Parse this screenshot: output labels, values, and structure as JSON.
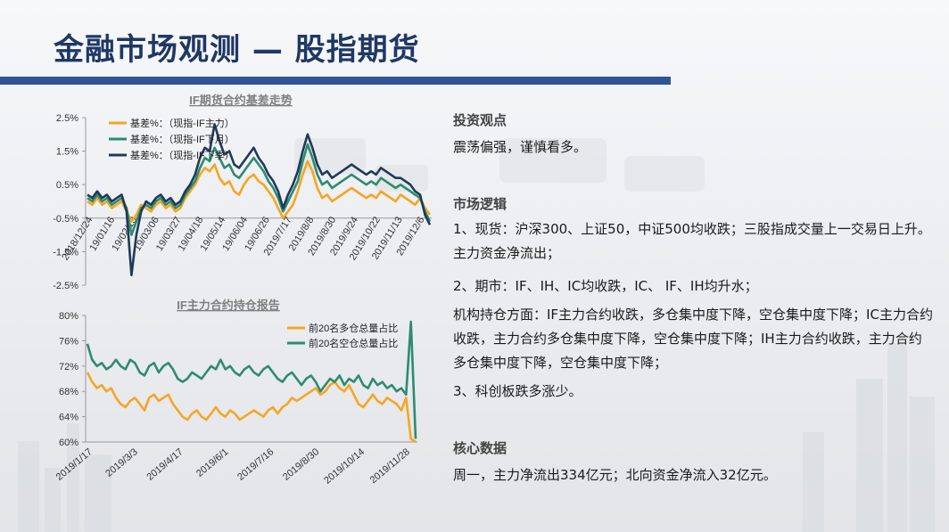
{
  "page": {
    "title": "金融市场观测 — 股指期货"
  },
  "text_panel": {
    "view_heading": "投资观点",
    "view_text": "震荡偏强，谨慎看多。",
    "logic_heading": "市场逻辑",
    "logic_p1": "1、现货：沪深300、上证50，中证500均收跌；三股指成交量上一交易日上升。主力资金净流出；",
    "logic_p2": "2、期市：IF、IH、IC均收跌，IC、 IF、IH均升水；",
    "logic_p3": "机构持仓方面：IF主力合约收跌，多仓集中度下降，空仓集中度下降；IC主力合约收跌，主力合约多仓集中度下降，空仓集中度下降；IH主力合约收跌，主力合约多仓集中度下降，空仓集中度下降；",
    "logic_p4": "3、科创板跌多涨少。",
    "data_heading": "核心数据",
    "data_text": "周一，主力净流出334亿元；北向资金净流入32亿元。"
  },
  "colors": {
    "orange": "#f5a623",
    "teal": "#2e8b6f",
    "navy": "#1f3a5a",
    "title_blue": "#1f3864"
  },
  "chart_data": [
    {
      "type": "line",
      "title": "IF期货合约基差走势",
      "ylim": [
        -2.5,
        2.5
      ],
      "y_ticks": [
        "2.5%",
        "1.5%",
        "0.5%",
        "-0.5%",
        "-1.5%",
        "-2.5%"
      ],
      "y_tick_values": [
        2.5,
        1.5,
        0.5,
        -0.5,
        -1.5,
        -2.5
      ],
      "x_ticks": [
        "2018/12/24",
        "19/01/16",
        "19/02/13",
        "19/03/06",
        "19/03/27",
        "19/04/18",
        "19/05/14",
        "19/06/04",
        "19/06/26",
        "2019/7/17",
        "2019/8/8",
        "2019/8/30",
        "2019/9/24",
        "2019/10/22",
        "2019/11/13",
        "2019/12/6"
      ],
      "legend_position": "top-left",
      "series": [
        {
          "name": "基差%：（现指-IF主力）",
          "color": "#f5a623",
          "values": [
            0.0,
            -0.1,
            0.1,
            -0.1,
            0.0,
            -0.2,
            -0.1,
            0.0,
            -0.3,
            -0.6,
            -0.4,
            -0.1,
            -0.2,
            -0.3,
            -0.1,
            0.0,
            -0.2,
            -0.1,
            -0.3,
            -0.2,
            0.1,
            0.3,
            0.5,
            0.8,
            1.0,
            0.9,
            1.1,
            0.7,
            0.5,
            0.6,
            0.3,
            0.2,
            0.5,
            0.7,
            0.8,
            0.6,
            0.5,
            0.3,
            0.1,
            -0.2,
            -0.5,
            -0.3,
            -0.1,
            0.3,
            0.8,
            1.2,
            0.9,
            0.4,
            0.1,
            0.2,
            0.0,
            0.1,
            0.2,
            0.3,
            0.4,
            0.3,
            0.2,
            0.1,
            0.2,
            0.1,
            0.3,
            0.2,
            0.1,
            0.0,
            0.2,
            0.1,
            0.0,
            -0.1,
            0.1,
            -0.2,
            -0.4
          ]
        },
        {
          "name": "基差%：（现指-IF下月）",
          "color": "#2e8b6f",
          "values": [
            0.1,
            0.0,
            0.2,
            0.0,
            0.1,
            -0.1,
            0.0,
            0.1,
            -0.2,
            -1.0,
            -0.6,
            -0.2,
            -0.1,
            -0.2,
            0.0,
            0.1,
            -0.1,
            0.0,
            -0.2,
            -0.1,
            0.2,
            0.4,
            0.6,
            1.0,
            1.3,
            1.2,
            1.6,
            1.3,
            1.0,
            1.1,
            0.8,
            0.7,
            0.9,
            1.1,
            1.3,
            1.1,
            0.9,
            0.6,
            0.4,
            0.1,
            -0.3,
            0.0,
            0.3,
            0.6,
            1.2,
            1.7,
            1.3,
            0.8,
            0.5,
            0.6,
            0.4,
            0.5,
            0.6,
            0.7,
            0.8,
            0.7,
            0.6,
            0.5,
            0.6,
            0.5,
            0.7,
            0.6,
            0.5,
            0.4,
            0.5,
            0.4,
            0.3,
            0.2,
            0.1,
            -0.3,
            -0.6
          ]
        },
        {
          "name": "基差%：（现指-IF下季）",
          "color": "#1f3a5a",
          "values": [
            0.2,
            0.1,
            0.3,
            0.1,
            0.2,
            0.0,
            0.1,
            0.2,
            -0.3,
            -2.2,
            -1.0,
            -0.3,
            0.0,
            -0.1,
            0.1,
            0.2,
            0.0,
            0.1,
            -0.1,
            0.0,
            0.3,
            0.5,
            0.8,
            1.3,
            1.6,
            1.5,
            2.3,
            1.8,
            1.4,
            1.5,
            1.1,
            1.0,
            1.2,
            1.4,
            1.6,
            1.3,
            1.1,
            0.8,
            0.6,
            0.3,
            -0.2,
            0.2,
            0.5,
            0.9,
            1.5,
            2.0,
            1.6,
            1.1,
            0.8,
            0.9,
            0.7,
            0.8,
            0.9,
            1.0,
            1.1,
            1.0,
            0.9,
            0.8,
            0.9,
            0.8,
            1.0,
            0.9,
            0.8,
            0.7,
            0.7,
            0.6,
            0.5,
            0.3,
            0.2,
            -0.4,
            -0.7
          ]
        }
      ]
    },
    {
      "type": "line",
      "title": "IF主力合约持仓报告",
      "ylim": [
        60,
        80
      ],
      "y_ticks": [
        "80%",
        "76%",
        "72%",
        "68%",
        "64%",
        "60%"
      ],
      "y_tick_values": [
        80,
        76,
        72,
        68,
        64,
        60
      ],
      "x_ticks": [
        "2019/1/17",
        "2019/3/3",
        "2019/4/17",
        "2019/6/1",
        "2019/7/16",
        "2019/8/30",
        "2019/10/14",
        "2019/11/28"
      ],
      "legend_position": "top-right",
      "series": [
        {
          "name": "前20名多仓总量占比",
          "color": "#f5a623",
          "values": [
            71.0,
            69.5,
            68.5,
            69.0,
            68.0,
            68.5,
            67.0,
            66.0,
            65.5,
            66.5,
            67.0,
            66.0,
            65.0,
            67.0,
            67.5,
            66.5,
            67.0,
            67.5,
            66.0,
            65.0,
            64.0,
            63.5,
            64.5,
            65.0,
            64.0,
            63.5,
            64.5,
            65.5,
            64.5,
            64.0,
            65.0,
            64.5,
            63.5,
            64.0,
            64.5,
            65.0,
            64.5,
            64.0,
            65.0,
            65.5,
            64.5,
            65.5,
            66.0,
            67.0,
            66.5,
            67.0,
            67.5,
            68.0,
            68.5,
            67.5,
            68.0,
            69.0,
            69.5,
            68.5,
            68.0,
            69.0,
            67.5,
            66.0,
            65.5,
            66.5,
            67.5,
            66.5,
            66.0,
            67.0,
            66.5,
            66.0,
            65.0,
            67.0,
            60.5,
            60.0
          ]
        },
        {
          "name": "前20名空仓总量占比",
          "color": "#2e8b6f",
          "values": [
            75.5,
            73.0,
            72.0,
            72.5,
            71.5,
            72.0,
            73.0,
            72.0,
            71.5,
            73.0,
            72.5,
            71.0,
            70.5,
            72.0,
            72.5,
            71.0,
            72.0,
            72.5,
            71.5,
            70.0,
            69.5,
            70.0,
            71.0,
            70.5,
            70.0,
            71.0,
            72.0,
            71.5,
            73.0,
            71.5,
            72.0,
            71.0,
            70.5,
            71.5,
            72.0,
            71.0,
            70.5,
            71.5,
            72.0,
            71.0,
            70.0,
            69.5,
            70.5,
            71.0,
            70.0,
            69.0,
            70.0,
            70.5,
            69.5,
            68.0,
            69.0,
            70.0,
            69.5,
            70.5,
            69.0,
            70.0,
            69.5,
            70.5,
            69.0,
            68.5,
            70.0,
            69.0,
            69.5,
            68.5,
            69.0,
            68.0,
            68.5,
            67.5,
            79.0,
            60.5
          ]
        }
      ]
    }
  ]
}
